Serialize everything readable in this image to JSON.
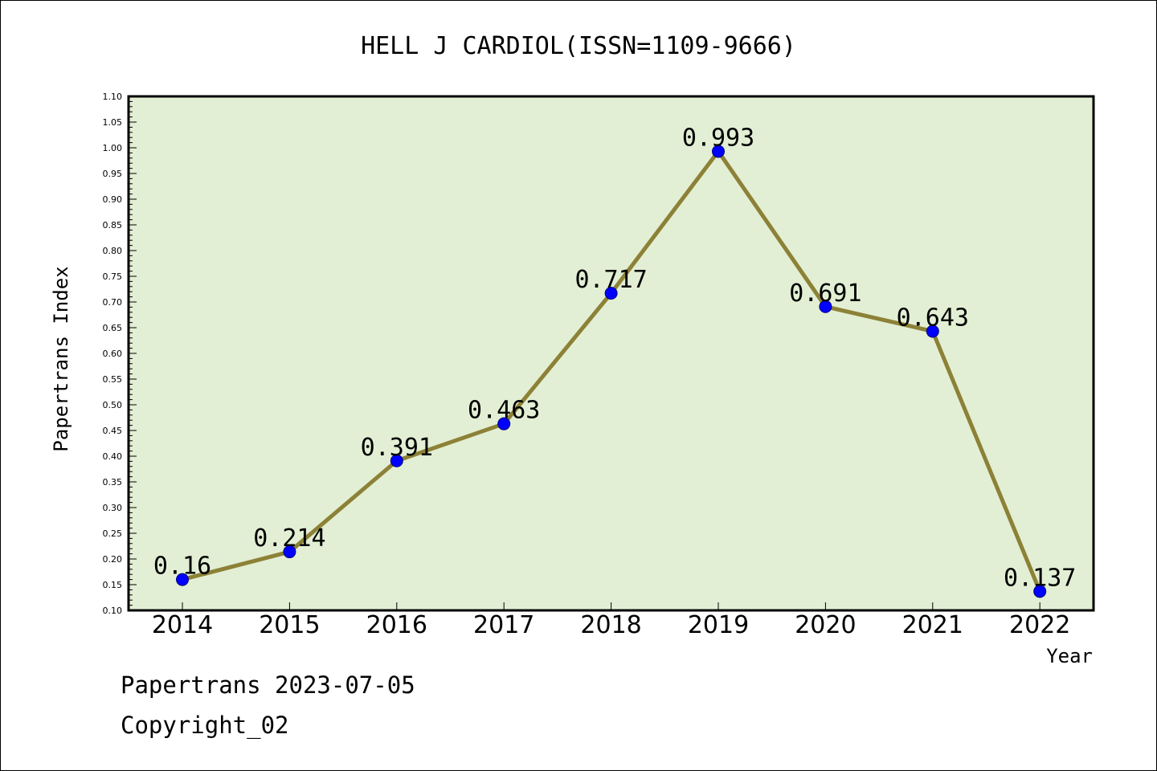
{
  "chart_data": {
    "type": "line",
    "title": "HELL J CARDIOL(ISSN=1109-9666)",
    "xlabel": "Year",
    "ylabel": "Papertrans Index",
    "categories": [
      "2014",
      "2015",
      "2016",
      "2017",
      "2018",
      "2019",
      "2020",
      "2021",
      "2022"
    ],
    "series": [
      {
        "values": [
          0.16,
          0.214,
          0.391,
          0.463,
          0.717,
          0.993,
          0.691,
          0.643,
          0.137
        ],
        "labels": [
          "0.16",
          "0.214",
          "0.391",
          "0.463",
          "0.717",
          "0.993",
          "0.691",
          "0.643",
          "0.137"
        ]
      }
    ],
    "ylim": [
      0.1,
      1.1
    ],
    "yticks": [
      "0.10",
      "0.15",
      "0.20",
      "0.25",
      "0.30",
      "0.35",
      "0.40",
      "0.45",
      "0.50",
      "0.55",
      "0.60",
      "0.65",
      "0.70",
      "0.75",
      "0.80",
      "0.85",
      "0.90",
      "0.95",
      "1.00",
      "1.05",
      "1.10"
    ],
    "grid": false,
    "legend": "none",
    "colors": {
      "plot_background": "#e2efd4",
      "line": "#8c8136",
      "marker": "#0000ff"
    }
  },
  "footer": {
    "line1": "Papertrans 2023-07-05",
    "line2": "Copyright_02"
  }
}
